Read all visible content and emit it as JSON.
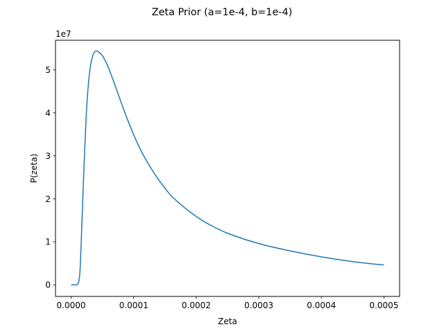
{
  "chart_data": {
    "type": "line",
    "title": "Zeta Prior (a=1e-4, b=1e-4)",
    "xlabel": "Zeta",
    "ylabel": "P(zeta)",
    "y_offset_text": "1e7",
    "xlim": [
      -2.5e-05,
      0.000525
    ],
    "ylim": [
      -2.7,
      56.9
    ],
    "y_unit_multiplier": 10000000,
    "grid": false,
    "x_ticks": [
      0,
      0.0001,
      0.0002,
      0.0003,
      0.0004,
      0.0005
    ],
    "x_tick_labels": [
      "0.0000",
      "0.0001",
      "0.0002",
      "0.0003",
      "0.0004",
      "0.0005"
    ],
    "y_ticks": [
      0,
      10,
      20,
      30,
      40,
      50
    ],
    "y_tick_labels": [
      "0",
      "1",
      "2",
      "3",
      "4",
      "5"
    ],
    "series": [
      {
        "color": "#1f77b4",
        "x": [
          0,
          7.5e-06,
          1e-05,
          1.25e-05,
          1.5e-05,
          2e-05,
          2.5e-05,
          3e-05,
          3.5e-05,
          4e-05,
          4.5e-05,
          5e-05,
          5.5e-05,
          6e-05,
          7e-05,
          8e-05,
          9e-05,
          0.0001,
          0.00011,
          0.00012,
          0.00013,
          0.00014,
          0.00015,
          0.00016,
          0.00018,
          0.0002,
          0.00022,
          0.00025,
          0.0003,
          0.00035,
          0.0004,
          0.00045,
          0.0005
        ],
        "y": [
          0,
          0,
          0.1,
          1.0,
          5.6,
          25.4,
          41.7,
          50.0,
          53.5,
          54.4,
          54.1,
          53.3,
          52.0,
          50.4,
          46.5,
          42.4,
          38.5,
          34.9,
          31.7,
          29.0,
          26.6,
          24.4,
          22.5,
          20.7,
          18.1,
          15.9,
          14.1,
          12.0,
          9.6,
          7.9,
          6.5,
          5.4,
          4.6
        ]
      }
    ]
  }
}
